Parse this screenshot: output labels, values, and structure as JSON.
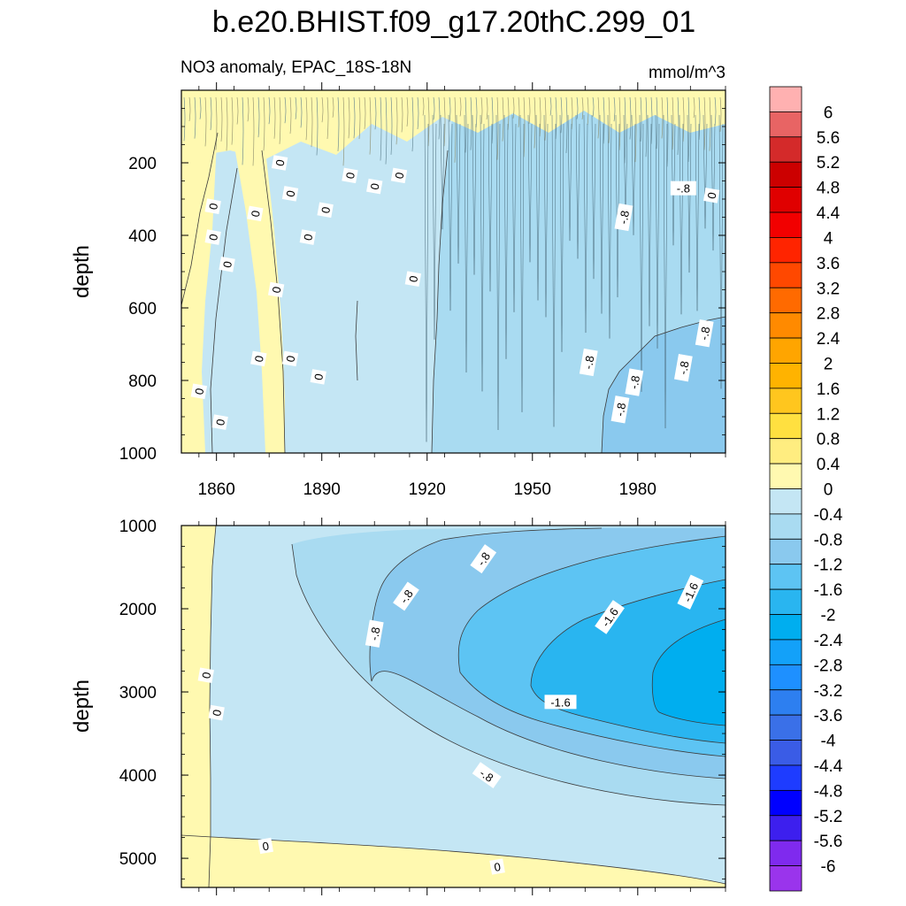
{
  "chart_data": {
    "type": "contour",
    "title": "b.e20.BHIST.f09_g17.20thC.299_01",
    "subtitle_left": "NO3 anomaly, EPAC_18S-18N",
    "subtitle_right": "mmol/m^3",
    "panels": [
      {
        "id": "upper",
        "ylabel": "depth",
        "ylim": [
          1000,
          0
        ],
        "yticks": [
          200,
          400,
          600,
          800,
          1000
        ],
        "ytick_labels": [
          "200",
          "400",
          "600",
          "800",
          "1000"
        ],
        "xlim": [
          1850,
          2005
        ],
        "xticks": [
          1860,
          1890,
          1920,
          1950,
          1980
        ],
        "xtick_labels": [
          "1860",
          "1890",
          "1920",
          "1950",
          "1980"
        ],
        "contour_labels": [
          {
            "text": "0",
            "year": 1878,
            "depth": 200,
            "angle": -80
          },
          {
            "text": "0",
            "year": 1859,
            "depth": 320,
            "angle": -80
          },
          {
            "text": "0",
            "year": 1871,
            "depth": 340,
            "angle": -80
          },
          {
            "text": "0",
            "year": 1881,
            "depth": 285,
            "angle": -80
          },
          {
            "text": "0",
            "year": 1898,
            "depth": 235,
            "angle": -80
          },
          {
            "text": "0",
            "year": 1905,
            "depth": 265,
            "angle": -80
          },
          {
            "text": "0",
            "year": 1912,
            "depth": 235,
            "angle": -80
          },
          {
            "text": "0",
            "year": 1891,
            "depth": 330,
            "angle": -80
          },
          {
            "text": "0",
            "year": 1886,
            "depth": 405,
            "angle": -80
          },
          {
            "text": "0",
            "year": 1859,
            "depth": 405,
            "angle": -80
          },
          {
            "text": "0",
            "year": 1863,
            "depth": 480,
            "angle": -80
          },
          {
            "text": "0",
            "year": 1877,
            "depth": 550,
            "angle": -80
          },
          {
            "text": "0",
            "year": 1916,
            "depth": 520,
            "angle": -80
          },
          {
            "text": "0",
            "year": 1872,
            "depth": 740,
            "angle": -80
          },
          {
            "text": "0",
            "year": 1881,
            "depth": 740,
            "angle": -80
          },
          {
            "text": "0",
            "year": 1889,
            "depth": 790,
            "angle": -80
          },
          {
            "text": "0",
            "year": 1855,
            "depth": 830,
            "angle": -80
          },
          {
            "text": "0",
            "year": 1861,
            "depth": 915,
            "angle": -80
          },
          {
            "text": "0",
            "year": 2001,
            "depth": 290,
            "angle": -80
          },
          {
            "text": "-.8",
            "year": 1993,
            "depth": 270,
            "angle": 0
          },
          {
            "text": "-.8",
            "year": 1976,
            "depth": 350,
            "angle": -80
          },
          {
            "text": "-.8",
            "year": 1999,
            "depth": 670,
            "angle": -80
          },
          {
            "text": "-.8",
            "year": 1993,
            "depth": 765,
            "angle": -80
          },
          {
            "text": "-.8",
            "year": 1966,
            "depth": 750,
            "angle": -80
          },
          {
            "text": "-.8",
            "year": 1979,
            "depth": 805,
            "angle": -80
          },
          {
            "text": "-.8",
            "year": 1975,
            "depth": 880,
            "angle": -80
          }
        ]
      },
      {
        "id": "lower",
        "ylabel": "depth",
        "ylim": [
          5350,
          1000
        ],
        "yticks": [
          1000,
          2000,
          3000,
          4000,
          5000
        ],
        "ytick_labels": [
          "1000",
          "2000",
          "3000",
          "4000",
          "5000"
        ],
        "xlim": [
          1850,
          2005
        ],
        "xticks": [
          1860,
          1890,
          1920,
          1950,
          1980
        ],
        "contour_labels": [
          {
            "text": "-.8",
            "year": 1936,
            "depth": 1400,
            "angle": -55
          },
          {
            "text": "-.8",
            "year": 1914,
            "depth": 1850,
            "angle": -55
          },
          {
            "text": "-.8",
            "year": 1905,
            "depth": 2300,
            "angle": -80
          },
          {
            "text": "-.8",
            "year": 1937,
            "depth": 4000,
            "angle": 35
          },
          {
            "text": "-1.6",
            "year": 1972,
            "depth": 2100,
            "angle": -55
          },
          {
            "text": "-1.6",
            "year": 1995,
            "depth": 1800,
            "angle": -65
          },
          {
            "text": "-1.6",
            "year": 1958,
            "depth": 3120,
            "angle": 0
          },
          {
            "text": "0",
            "year": 1857,
            "depth": 2800,
            "angle": -80
          },
          {
            "text": "0",
            "year": 1860,
            "depth": 3250,
            "angle": -80
          },
          {
            "text": "0",
            "year": 1874,
            "depth": 4850,
            "angle": -10
          },
          {
            "text": "0",
            "year": 1940,
            "depth": 5100,
            "angle": -10
          }
        ]
      }
    ],
    "colorbar": {
      "levels": [
        "6",
        "5.6",
        "5.2",
        "4.8",
        "4.4",
        "4",
        "3.6",
        "3.2",
        "2.8",
        "2.4",
        "2",
        "1.6",
        "1.2",
        "0.8",
        "0.4",
        "0",
        "-0.4",
        "-0.8",
        "-1.2",
        "-1.6",
        "-2",
        "-2.4",
        "-2.8",
        "-3.2",
        "-3.6",
        "-4",
        "-4.4",
        "-4.8",
        "-5.2",
        "-5.6",
        "-6"
      ],
      "colors": [
        "#FFB1B1",
        "#E86464",
        "#D42A2A",
        "#CC0000",
        "#E00000",
        "#F20000",
        "#FF2400",
        "#FF4800",
        "#FF6A00",
        "#FF8A00",
        "#FFA500",
        "#FFB300",
        "#FFC61E",
        "#FFE040",
        "#FFED80",
        "#FFF9B0",
        "#C4E6F4",
        "#A9DBF1",
        "#8AC9EE",
        "#5DC4F3",
        "#29B5F0",
        "#00AEEF",
        "#13A1F9",
        "#1E90FF",
        "#2D7FF0",
        "#3A70E8",
        "#3A5CE6",
        "#1E3CFF",
        "#0000FF",
        "#3D1FEE",
        "#7F2AEE",
        "#9A34EC"
      ]
    }
  }
}
